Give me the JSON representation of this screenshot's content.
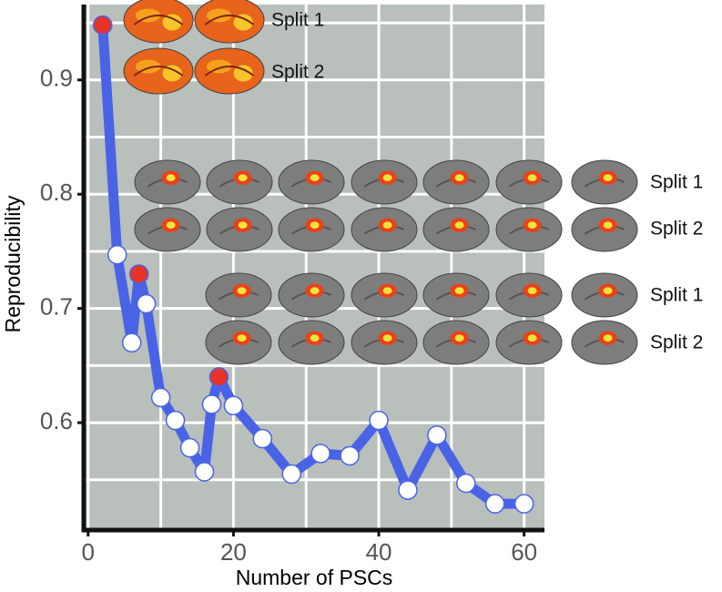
{
  "chart_data": {
    "type": "line",
    "x_label": "Number of PSCs",
    "y_label": "Reproducibility",
    "x": [
      2,
      4,
      6,
      7,
      8,
      10,
      12,
      14,
      16,
      17,
      18,
      20,
      24,
      28,
      32,
      36,
      40,
      44,
      48,
      52,
      56,
      60
    ],
    "series": [
      {
        "color": "#4a63e6",
        "values": [
          0.948,
          0.747,
          0.67,
          0.73,
          0.704,
          0.622,
          0.602,
          0.578,
          0.557,
          0.616,
          0.64,
          0.615,
          0.586,
          0.555,
          0.573,
          0.571,
          0.602,
          0.541,
          0.589,
          0.547,
          0.529,
          0.529
        ]
      }
    ],
    "highlighted": [
      0,
      3,
      10
    ],
    "highlight_color": "#e53427",
    "xlim": [
      -0.6,
      62.8
    ],
    "ylim": [
      0.506,
      0.966
    ],
    "xticks": [
      0,
      20,
      40,
      60
    ],
    "yticks": [
      0.6,
      0.7,
      0.8,
      0.9
    ],
    "xgrid": [
      0,
      10,
      20,
      30,
      40,
      50,
      60
    ],
    "ygrid": [
      0.55,
      0.6,
      0.65,
      0.7,
      0.75,
      0.8,
      0.85,
      0.9,
      0.95
    ],
    "grid": true,
    "annotations": [
      "Split 1",
      "Split 2",
      "Split 1",
      "Split 2",
      "Split 1",
      "Split 2"
    ]
  }
}
